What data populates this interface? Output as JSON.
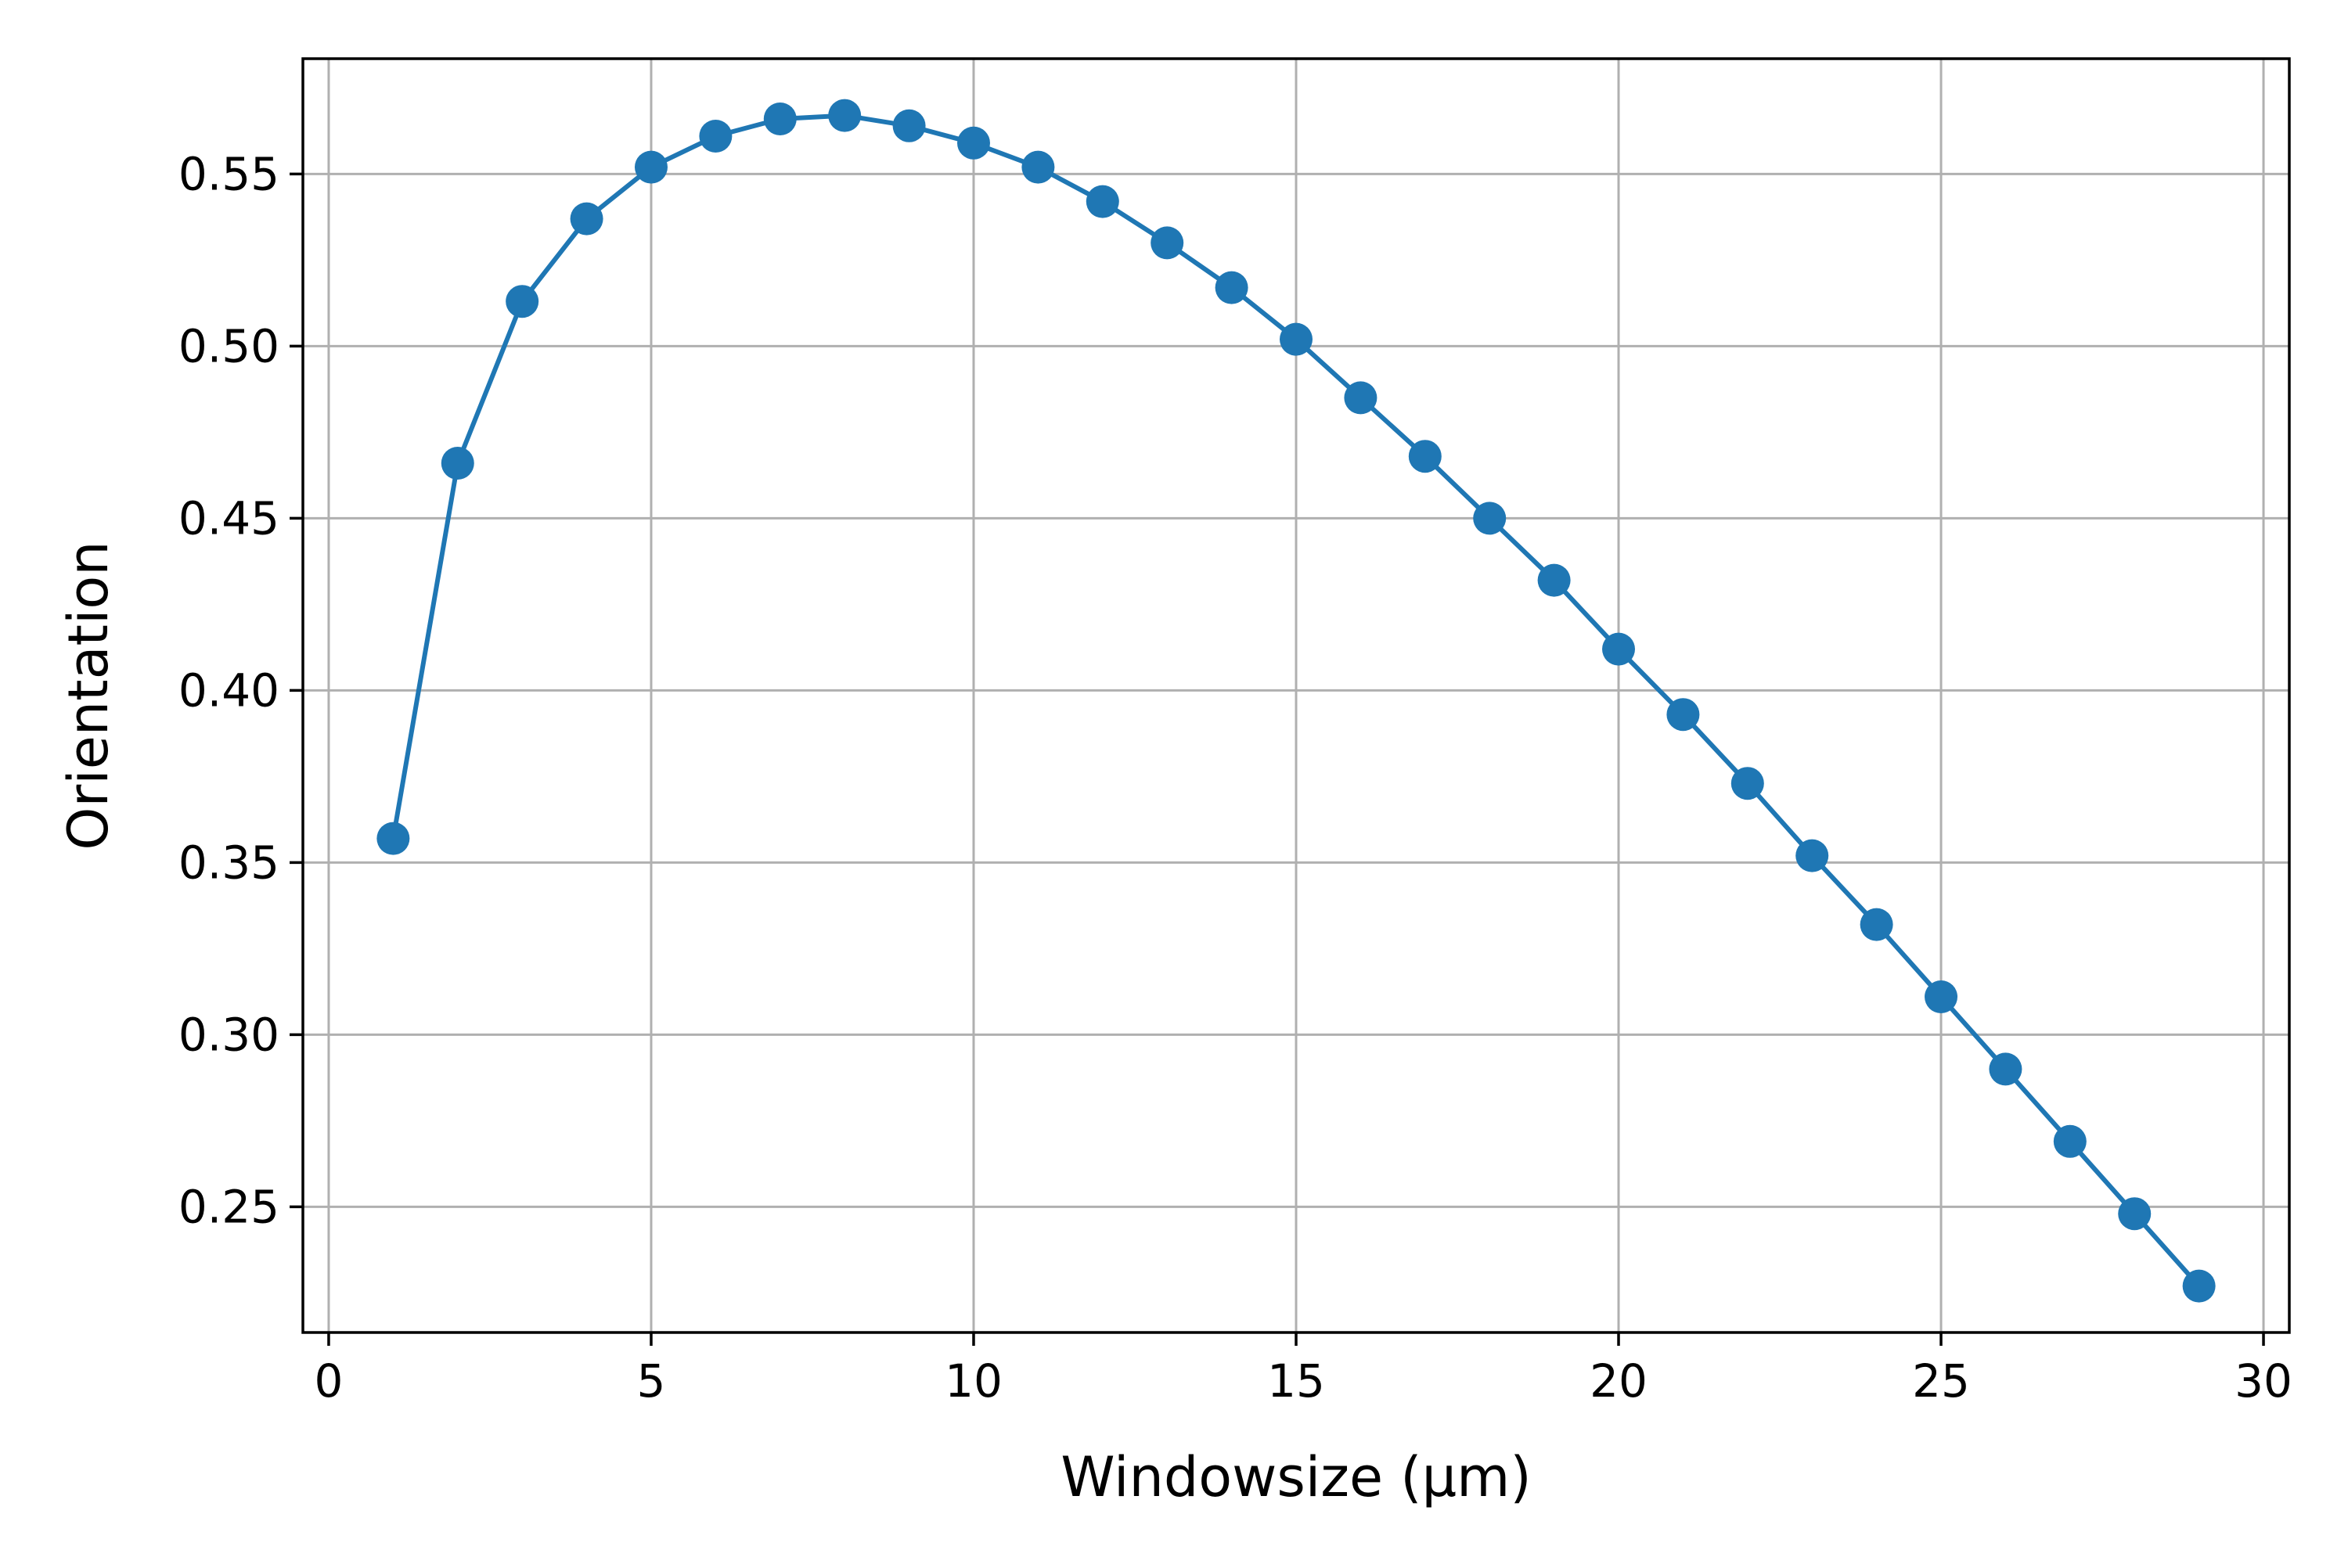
{
  "chart_data": {
    "type": "line",
    "title": "",
    "xlabel": "Windowsize (µm)",
    "ylabel": "Orientation",
    "xlim": [
      -0.4,
      30.4
    ],
    "ylim": [
      0.2135,
      0.5835
    ],
    "grid": true,
    "legend": "none",
    "x_ticks": [
      0,
      5,
      10,
      15,
      20,
      25,
      30
    ],
    "x_tick_labels": [
      "0",
      "5",
      "10",
      "15",
      "20",
      "25",
      "30"
    ],
    "y_ticks": [
      0.25,
      0.3,
      0.35,
      0.4,
      0.45,
      0.5,
      0.55
    ],
    "y_tick_labels": [
      "0.25",
      "0.30",
      "0.35",
      "0.40",
      "0.45",
      "0.50",
      "0.55"
    ],
    "series": [
      {
        "color": "#1f77b4",
        "marker": "circle",
        "x": [
          1,
          2,
          3,
          4,
          5,
          6,
          7,
          8,
          9,
          10,
          11,
          12,
          13,
          14,
          15,
          16,
          17,
          18,
          19,
          20,
          21,
          22,
          23,
          24,
          25,
          26,
          27,
          28,
          29
        ],
        "y": [
          0.357,
          0.466,
          0.513,
          0.537,
          0.552,
          0.561,
          0.566,
          0.567,
          0.564,
          0.559,
          0.552,
          0.542,
          0.53,
          0.517,
          0.502,
          0.485,
          0.468,
          0.45,
          0.432,
          0.412,
          0.393,
          0.373,
          0.352,
          0.332,
          0.311,
          0.29,
          0.269,
          0.248,
          0.227
        ]
      }
    ]
  }
}
